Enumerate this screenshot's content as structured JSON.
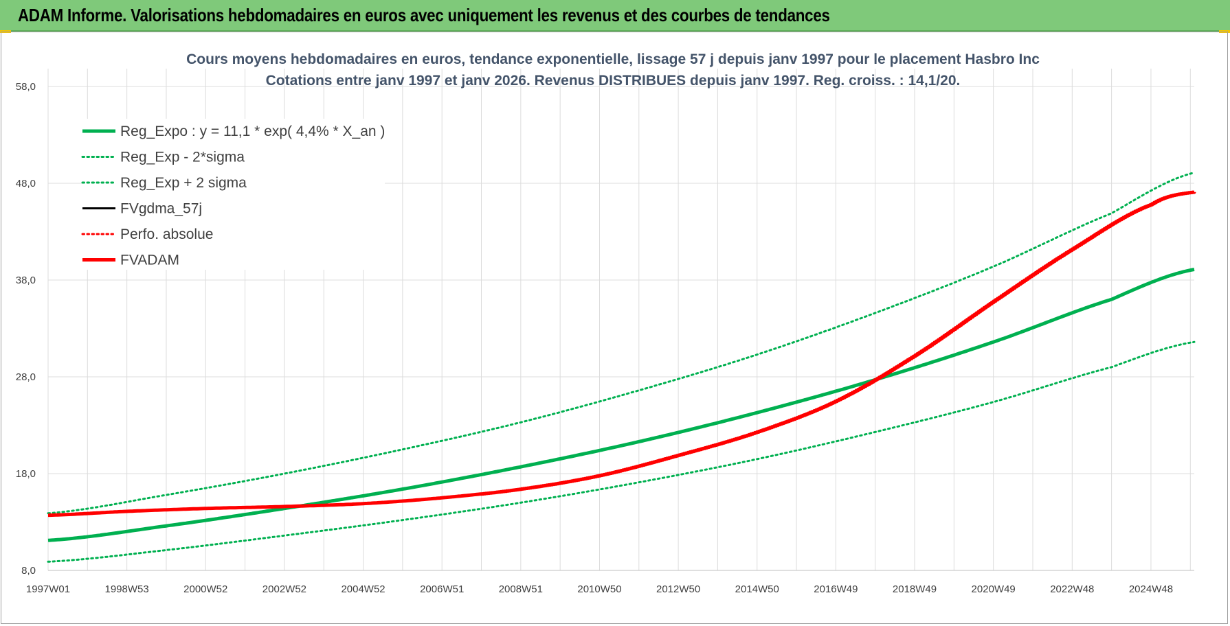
{
  "banner": {
    "title": "ADAM Informe. Valorisations hebdomadaires en euros avec uniquement les revenus et des courbes de tendances",
    "color": "#7fc97a"
  },
  "chart_data": {
    "type": "line",
    "title": "Cours moyens hebdomadaires en euros, tendance exponentielle, lissage 57 j depuis janv 1997  pour le placement Hasbro Inc",
    "subtitle": "Cotations entre janv 1997 et janv 2026. Revenus DISTRIBUES depuis janv 1997. Reg. croiss. : 14,1/20.",
    "xlabel": "",
    "ylabel": "",
    "xlim": [
      1997.0,
      2026.1
    ],
    "ylim": [
      8.0,
      58.0
    ],
    "y_ticks": [
      "8,0",
      "18,0",
      "28,0",
      "38,0",
      "48,0",
      "58,0"
    ],
    "y_tick_values": [
      8,
      18,
      28,
      38,
      48,
      58
    ],
    "x_ticks": [
      "1997W01",
      "1998W53",
      "2000W52",
      "2002W52",
      "2004W52",
      "2006W51",
      "2008W51",
      "2010W50",
      "2012W50",
      "2014W50",
      "2016W49",
      "2018W49",
      "2020W49",
      "2022W48",
      "2024W48"
    ],
    "x_tick_values": [
      1997.0,
      1999.0,
      2001.0,
      2003.0,
      2005.0,
      2007.0,
      2009.0,
      2011.0,
      2013.0,
      2015.0,
      2017.0,
      2019.0,
      2021.0,
      2023.0,
      2025.0
    ],
    "grid": true,
    "legend_position": "top-left",
    "series": [
      {
        "name": "Reg_Expo : y = 11,1 * exp( 4,4% *  X_an )",
        "color": "#00b050",
        "style": "solid-thick",
        "x": [
          1997.0,
          2000.0,
          2003.0,
          2006.0,
          2009.0,
          2012.0,
          2015.0,
          2018.0,
          2021.0,
          2024.0,
          2026.1
        ],
        "y": [
          11.1,
          12.6,
          14.4,
          16.4,
          18.7,
          21.3,
          24.3,
          27.7,
          31.6,
          36.0,
          39.1
        ]
      },
      {
        "name": "Reg_Exp - 2*sigma",
        "color": "#00b050",
        "style": "dotted",
        "x": [
          1997.0,
          2000.0,
          2003.0,
          2006.0,
          2009.0,
          2012.0,
          2015.0,
          2018.0,
          2021.0,
          2024.0,
          2026.1
        ],
        "y": [
          8.9,
          10.1,
          11.6,
          13.2,
          15.0,
          17.1,
          19.5,
          22.3,
          25.4,
          29.0,
          31.6
        ]
      },
      {
        "name": "Reg_Exp + 2 sigma",
        "color": "#00b050",
        "style": "dotted",
        "x": [
          1997.0,
          2000.0,
          2003.0,
          2006.0,
          2009.0,
          2012.0,
          2015.0,
          2018.0,
          2021.0,
          2024.0,
          2026.1
        ],
        "y": [
          13.9,
          15.8,
          18.0,
          20.5,
          23.3,
          26.6,
          30.3,
          34.6,
          39.4,
          44.9,
          49.1
        ]
      },
      {
        "name": "FVgdma_57j",
        "color": "#000000",
        "style": "solid",
        "x": [],
        "y": []
      },
      {
        "name": "Perfo. absolue",
        "color": "#ff0000",
        "style": "dotted",
        "x": [],
        "y": []
      },
      {
        "name": "FVADAM",
        "color": "#ff0000",
        "style": "solid-thick",
        "x": [
          1997.0,
          1999.0,
          2001.0,
          2003.0,
          2005.0,
          2007.0,
          2009.0,
          2011.0,
          2013.0,
          2015.0,
          2017.0,
          2019.0,
          2021.0,
          2023.0,
          2025.0,
          2026.1
        ],
        "y": [
          13.7,
          14.1,
          14.4,
          14.6,
          14.9,
          15.5,
          16.4,
          17.8,
          19.9,
          22.3,
          25.5,
          30.2,
          35.8,
          41.2,
          45.8,
          47.1
        ]
      }
    ]
  }
}
